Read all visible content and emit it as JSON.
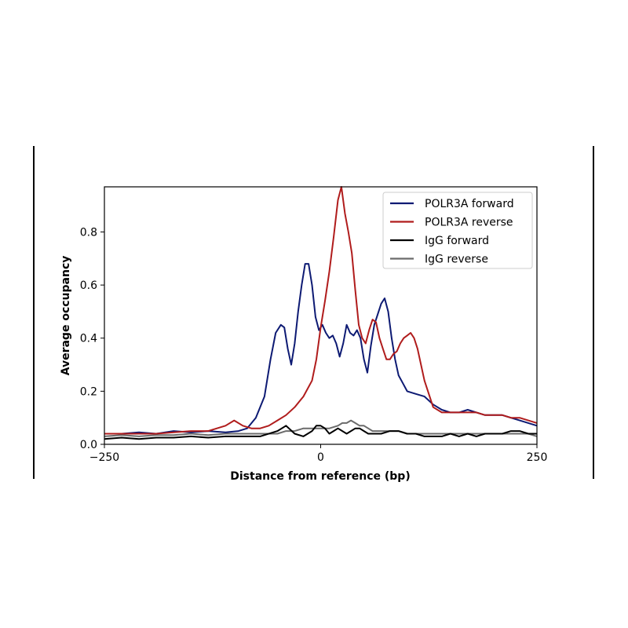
{
  "chart_data": {
    "type": "line",
    "title": "",
    "xlabel": "Distance from reference (bp)",
    "ylabel": "Average occupancy",
    "xlim": [
      -250,
      250
    ],
    "ylim": [
      0.0,
      0.97
    ],
    "xticks": [
      -250,
      0,
      250
    ],
    "xtick_labels": [
      "−250",
      "0",
      "250"
    ],
    "yticks": [
      0.0,
      0.2,
      0.4,
      0.6,
      0.8
    ],
    "ytick_labels": [
      "0.0",
      "0.2",
      "0.4",
      "0.6",
      "0.8"
    ],
    "grid": false,
    "legend_position": "top-right",
    "series": [
      {
        "name": "POLR3A forward",
        "color": "#0d1a73",
        "x": [
          -250,
          -230,
          -210,
          -190,
          -170,
          -150,
          -130,
          -110,
          -95,
          -85,
          -75,
          -65,
          -58,
          -52,
          -46,
          -42,
          -38,
          -34,
          -30,
          -26,
          -22,
          -18,
          -14,
          -10,
          -6,
          -2,
          2,
          6,
          10,
          14,
          18,
          22,
          26,
          30,
          34,
          38,
          42,
          46,
          50,
          54,
          58,
          62,
          66,
          70,
          74,
          78,
          82,
          86,
          90,
          95,
          100,
          110,
          120,
          130,
          140,
          150,
          160,
          170,
          180,
          190,
          200,
          210,
          220,
          230,
          240,
          250
        ],
        "y": [
          0.04,
          0.04,
          0.045,
          0.04,
          0.05,
          0.045,
          0.05,
          0.045,
          0.05,
          0.06,
          0.1,
          0.18,
          0.32,
          0.42,
          0.45,
          0.44,
          0.36,
          0.3,
          0.38,
          0.5,
          0.6,
          0.68,
          0.68,
          0.6,
          0.48,
          0.43,
          0.45,
          0.42,
          0.4,
          0.41,
          0.38,
          0.33,
          0.38,
          0.45,
          0.42,
          0.41,
          0.43,
          0.4,
          0.32,
          0.27,
          0.37,
          0.45,
          0.49,
          0.53,
          0.55,
          0.5,
          0.4,
          0.32,
          0.26,
          0.23,
          0.2,
          0.19,
          0.18,
          0.15,
          0.13,
          0.12,
          0.12,
          0.13,
          0.12,
          0.11,
          0.11,
          0.11,
          0.1,
          0.09,
          0.08,
          0.07
        ]
      },
      {
        "name": "POLR3A reverse",
        "color": "#b01c1c",
        "x": [
          -250,
          -230,
          -210,
          -190,
          -170,
          -150,
          -130,
          -110,
          -100,
          -90,
          -80,
          -70,
          -60,
          -50,
          -40,
          -30,
          -20,
          -10,
          -5,
          0,
          5,
          10,
          15,
          20,
          24,
          28,
          32,
          36,
          40,
          44,
          48,
          52,
          56,
          60,
          64,
          68,
          72,
          76,
          80,
          84,
          88,
          92,
          96,
          100,
          104,
          108,
          112,
          116,
          120,
          130,
          140,
          150,
          160,
          170,
          180,
          190,
          200,
          210,
          220,
          230,
          240,
          250
        ],
        "y": [
          0.04,
          0.04,
          0.04,
          0.04,
          0.045,
          0.05,
          0.05,
          0.07,
          0.09,
          0.07,
          0.06,
          0.06,
          0.07,
          0.09,
          0.11,
          0.14,
          0.18,
          0.24,
          0.32,
          0.44,
          0.54,
          0.65,
          0.78,
          0.92,
          0.97,
          0.87,
          0.8,
          0.72,
          0.58,
          0.45,
          0.4,
          0.38,
          0.43,
          0.47,
          0.46,
          0.4,
          0.36,
          0.32,
          0.32,
          0.34,
          0.35,
          0.38,
          0.4,
          0.41,
          0.42,
          0.4,
          0.36,
          0.3,
          0.24,
          0.14,
          0.12,
          0.12,
          0.12,
          0.12,
          0.12,
          0.11,
          0.11,
          0.11,
          0.1,
          0.1,
          0.09,
          0.08
        ]
      },
      {
        "name": "IgG forward",
        "color": "#000000",
        "x": [
          -250,
          -230,
          -210,
          -190,
          -170,
          -150,
          -130,
          -110,
          -90,
          -70,
          -50,
          -40,
          -30,
          -20,
          -10,
          -5,
          0,
          5,
          10,
          15,
          20,
          25,
          30,
          35,
          40,
          45,
          50,
          55,
          60,
          70,
          80,
          90,
          100,
          110,
          120,
          130,
          140,
          150,
          160,
          170,
          180,
          190,
          200,
          210,
          220,
          230,
          240,
          250
        ],
        "y": [
          0.02,
          0.025,
          0.02,
          0.025,
          0.025,
          0.03,
          0.025,
          0.03,
          0.03,
          0.03,
          0.05,
          0.07,
          0.04,
          0.03,
          0.05,
          0.07,
          0.07,
          0.06,
          0.04,
          0.05,
          0.06,
          0.05,
          0.04,
          0.05,
          0.06,
          0.06,
          0.05,
          0.04,
          0.04,
          0.04,
          0.05,
          0.05,
          0.04,
          0.04,
          0.03,
          0.03,
          0.03,
          0.04,
          0.03,
          0.04,
          0.03,
          0.04,
          0.04,
          0.04,
          0.05,
          0.05,
          0.04,
          0.04
        ]
      },
      {
        "name": "IgG reverse",
        "color": "#6b6b6b",
        "x": [
          -250,
          -230,
          -210,
          -190,
          -170,
          -150,
          -130,
          -110,
          -90,
          -70,
          -50,
          -40,
          -30,
          -20,
          -10,
          0,
          10,
          20,
          25,
          30,
          35,
          40,
          45,
          50,
          55,
          60,
          70,
          80,
          90,
          100,
          110,
          120,
          130,
          140,
          150,
          160,
          170,
          180,
          190,
          200,
          210,
          220,
          230,
          240,
          250
        ],
        "y": [
          0.03,
          0.035,
          0.03,
          0.035,
          0.035,
          0.04,
          0.035,
          0.04,
          0.04,
          0.04,
          0.04,
          0.05,
          0.05,
          0.06,
          0.06,
          0.06,
          0.06,
          0.07,
          0.08,
          0.08,
          0.09,
          0.08,
          0.07,
          0.07,
          0.06,
          0.05,
          0.05,
          0.05,
          0.05,
          0.04,
          0.04,
          0.04,
          0.04,
          0.04,
          0.04,
          0.04,
          0.04,
          0.04,
          0.04,
          0.04,
          0.04,
          0.04,
          0.04,
          0.04,
          0.03
        ]
      }
    ]
  }
}
